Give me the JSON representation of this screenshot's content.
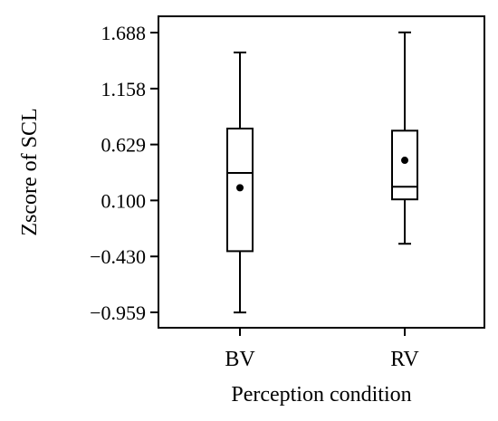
{
  "chart_data": {
    "type": "boxplot",
    "title": "",
    "xlabel": "Perception condition",
    "ylabel": "Zscore of SCL",
    "categories": [
      "BV",
      "RV"
    ],
    "yticks": [
      1.688,
      1.158,
      0.629,
      0.1,
      -0.43,
      -0.959
    ],
    "ytick_labels": [
      "1.688",
      "1.158",
      "0.629",
      "0.100",
      "−0.430",
      "−0.959"
    ],
    "ylim": [
      -1.12,
      1.82
    ],
    "series": [
      {
        "category": "BV",
        "whisker_low": -0.96,
        "q1": -0.38,
        "median": 0.36,
        "q3": 0.78,
        "whisker_high": 1.5,
        "mean": 0.22
      },
      {
        "category": "RV",
        "whisker_low": -0.31,
        "q1": 0.11,
        "median": 0.23,
        "q3": 0.76,
        "whisker_high": 1.69,
        "mean": 0.48
      }
    ],
    "grid": false,
    "legend": "none"
  }
}
